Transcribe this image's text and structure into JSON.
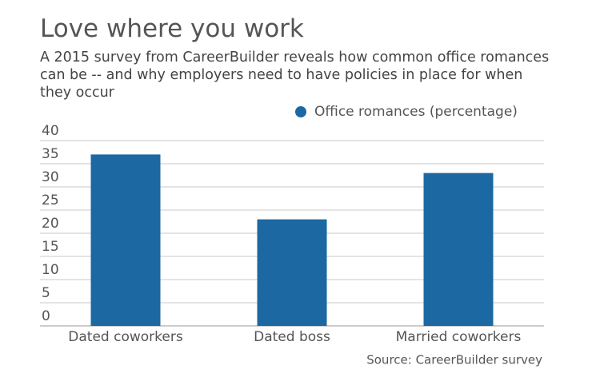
{
  "chart_data": {
    "type": "bar",
    "title": "Love where you work",
    "subtitle": "A 2015 survey from CareerBuilder reveals how common office romances can be -- and why employers need to have policies in place for when they occur",
    "categories": [
      "Dated coworkers",
      "Dated boss",
      "Married coworkers"
    ],
    "series": [
      {
        "name": "Office romances (percentage)",
        "color": "#1b68a2",
        "values": [
          37,
          23,
          33
        ]
      }
    ],
    "ylim": [
      0,
      40
    ],
    "yticks": [
      0,
      5,
      10,
      15,
      20,
      25,
      30,
      35,
      40
    ],
    "grid": true,
    "source": "Source: CareerBuilder survey"
  }
}
